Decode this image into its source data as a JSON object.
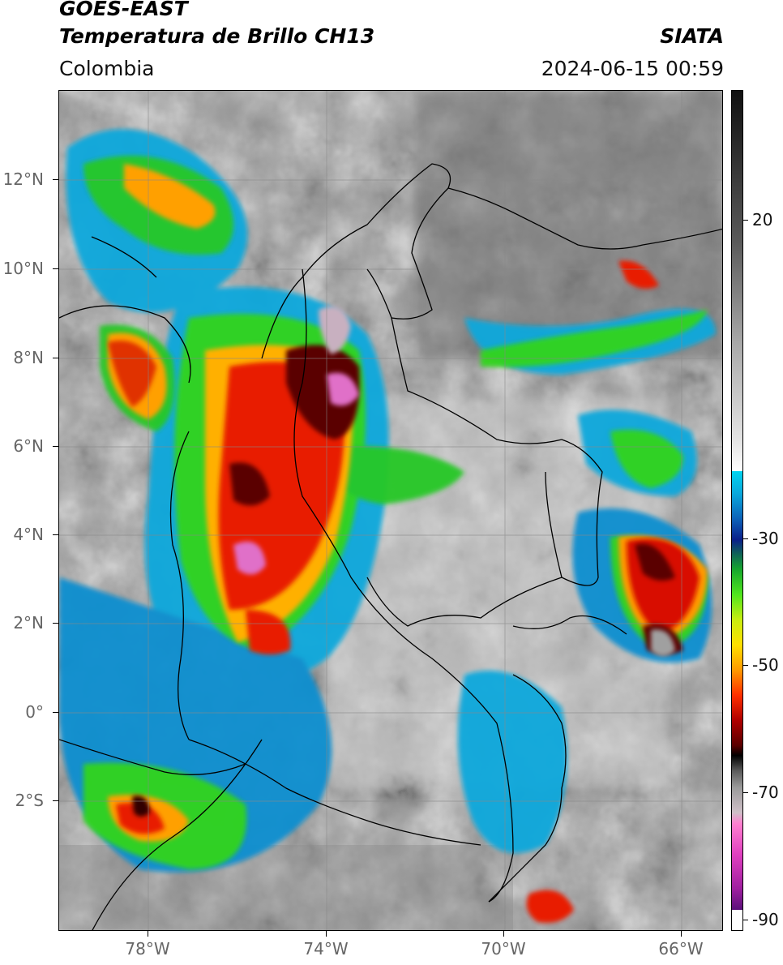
{
  "header": {
    "title_line1": "GOES-EAST",
    "title_line2": "Temperatura de Brillo CH13",
    "organization": "SIATA",
    "region": "Colombia",
    "datetime": "2024-06-15 00:59"
  },
  "axes": {
    "latitude_labels": [
      "12°N",
      "10°N",
      "8°N",
      "6°N",
      "4°N",
      "2°N",
      "0°",
      "2°S"
    ],
    "longitude_labels": [
      "78°W",
      "74°W",
      "70°W",
      "66°W"
    ]
  },
  "colorbar": {
    "labels": [
      "20",
      "-30",
      "-50",
      "-70",
      "-90"
    ]
  },
  "colors": {
    "background": "#ffffff",
    "border": "#000000",
    "axis_text": "#666666",
    "grid": "#888888"
  },
  "image_description_terms": {
    "icon": "satellite-image-icon"
  }
}
